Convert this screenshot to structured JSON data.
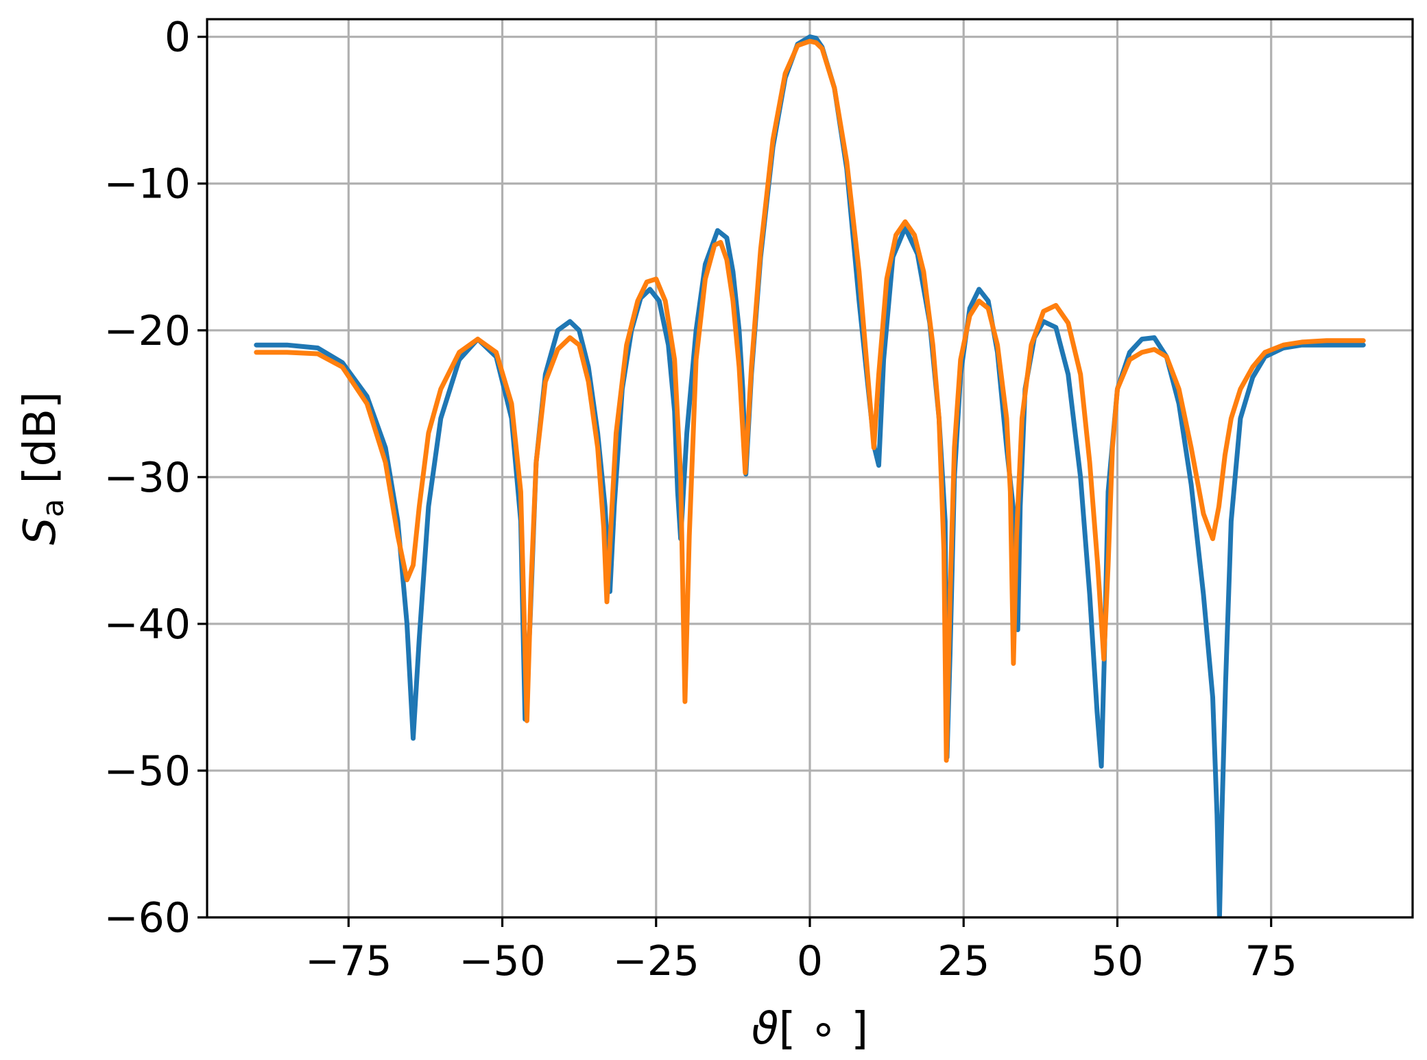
{
  "chart_data": {
    "type": "line",
    "xlabel_symbol": "ϑ",
    "xlabel_unit": "[ ∘ ]",
    "ylabel_symbol": "S",
    "ylabel_subscript": "a",
    "ylabel_unit": "[dB]",
    "xlim": [
      -98,
      98
    ],
    "ylim": [
      -60,
      1.2
    ],
    "xticks": [
      -75,
      -50,
      -25,
      0,
      25,
      50,
      75
    ],
    "xtick_labels": [
      "−75",
      "−50",
      "−25",
      "0",
      "25",
      "50",
      "75"
    ],
    "yticks": [
      0,
      -10,
      -20,
      -30,
      -40,
      -50,
      -60
    ],
    "ytick_labels": [
      "0",
      "−10",
      "−20",
      "−30",
      "−40",
      "−50",
      "−60"
    ],
    "grid": true,
    "series": [
      {
        "color": "#1f77b4",
        "x": [
          -90,
          -85,
          -80,
          -76,
          -72,
          -69,
          -67,
          -65.5,
          -64.5,
          -63.5,
          -62,
          -60,
          -57,
          -54,
          -51,
          -48.5,
          -47,
          -46.3,
          -45.5,
          -44.5,
          -43,
          -41,
          -39,
          -37.5,
          -36,
          -34.5,
          -33.3,
          -32.5,
          -31.8,
          -30.5,
          -29,
          -27.5,
          -26,
          -24.5,
          -23,
          -22,
          -21.5,
          -21,
          -20,
          -18.5,
          -17,
          -15,
          -13.5,
          -12.5,
          -11.5,
          -10.9,
          -10.4,
          -9.5,
          -8,
          -6,
          -4,
          -2,
          0,
          1,
          2,
          4,
          6,
          8,
          9.5,
          10.5,
          11.2,
          12,
          13.5,
          15.5,
          17.5,
          19.5,
          21,
          22,
          22.3,
          22.8,
          23.5,
          24.5,
          26,
          27.5,
          29,
          30.5,
          32,
          33.3,
          33.8,
          34.2,
          35,
          36.5,
          38,
          40,
          42,
          44,
          45.5,
          46.7,
          47.4,
          47.9,
          48.5,
          50,
          52,
          54,
          56,
          58,
          60,
          62,
          64,
          65.5,
          66.2,
          66.6,
          67,
          67.6,
          68.5,
          70,
          72,
          74,
          77,
          80,
          84,
          88,
          90
        ],
        "y": [
          -21,
          -21,
          -21.2,
          -22.2,
          -24.5,
          -28,
          -33,
          -40,
          -47.8,
          -41,
          -32,
          -26,
          -22,
          -20.6,
          -21.8,
          -26,
          -33,
          -46.5,
          -40,
          -29,
          -23,
          -20,
          -19.4,
          -20,
          -22.5,
          -27,
          -32,
          -37.8,
          -32,
          -24,
          -20,
          -17.8,
          -17.2,
          -18,
          -21,
          -25.5,
          -31,
          -34.2,
          -27,
          -20,
          -15.5,
          -13.2,
          -13.7,
          -16,
          -20,
          -24,
          -29.8,
          -23,
          -15,
          -7.5,
          -2.8,
          -0.5,
          0,
          -0.1,
          -0.7,
          -3.5,
          -9,
          -18,
          -24,
          -28,
          -29.2,
          -22,
          -15,
          -13,
          -14.8,
          -19.5,
          -26,
          -33,
          -49.1,
          -42,
          -30,
          -23,
          -18.5,
          -17.2,
          -18,
          -21.5,
          -28,
          -33,
          -40.4,
          -32,
          -24,
          -20.5,
          -19.4,
          -19.8,
          -23,
          -30,
          -38,
          -46,
          -49.7,
          -42,
          -31,
          -24,
          -21.5,
          -20.6,
          -20.5,
          -21.8,
          -25,
          -30.5,
          -38,
          -45,
          -53,
          -60,
          -53,
          -44,
          -33,
          -26,
          -23.2,
          -21.8,
          -21.2,
          -21,
          -21,
          -21,
          -21
        ]
      },
      {
        "color": "#ff7f0e",
        "x": [
          -90,
          -85,
          -80,
          -76,
          -72,
          -69,
          -67,
          -65.5,
          -64.5,
          -63.5,
          -62,
          -60,
          -57,
          -54,
          -51,
          -48.5,
          -47,
          -46,
          -45.3,
          -44.5,
          -43,
          -41,
          -39,
          -37.5,
          -36,
          -34.5,
          -33.5,
          -33,
          -32.3,
          -31.5,
          -29.8,
          -28,
          -26.5,
          -25,
          -23.5,
          -22,
          -21,
          -20.3,
          -19.6,
          -18.5,
          -17,
          -15.5,
          -14.5,
          -13.5,
          -12.5,
          -11.5,
          -10.5,
          -9.5,
          -8,
          -6,
          -4,
          -2,
          0,
          1,
          2,
          4,
          6,
          8,
          9,
          9.8,
          10.4,
          11.2,
          12.5,
          14,
          15.5,
          17,
          18.5,
          20,
          21,
          21.8,
          22.2,
          22.8,
          23.5,
          24.5,
          26,
          27.5,
          29,
          30.5,
          32,
          32.6,
          33.1,
          33.6,
          34.5,
          36,
          38,
          40,
          42,
          44,
          45.5,
          46.8,
          47.8,
          48.5,
          49.2,
          50,
          52,
          54,
          56,
          58,
          60,
          62,
          64,
          65.5,
          66.5,
          67.5,
          68.5,
          70,
          72,
          74,
          77,
          80,
          84,
          88,
          90
        ],
        "y": [
          -21.5,
          -21.5,
          -21.6,
          -22.5,
          -25,
          -29,
          -34,
          -37,
          -36,
          -32,
          -27,
          -24,
          -21.5,
          -20.6,
          -21.5,
          -25,
          -31,
          -46.6,
          -37,
          -29,
          -23.5,
          -21.3,
          -20.5,
          -21,
          -23.5,
          -28,
          -33.5,
          -38.5,
          -33,
          -27,
          -21,
          -18,
          -16.7,
          -16.5,
          -18,
          -22,
          -30,
          -45.3,
          -34,
          -22,
          -16.5,
          -14.2,
          -14,
          -15.2,
          -18,
          -22.5,
          -29.7,
          -22.5,
          -14.5,
          -7,
          -2.5,
          -0.6,
          -0.3,
          -0.4,
          -0.8,
          -3.5,
          -8.5,
          -16,
          -21,
          -25,
          -28,
          -23,
          -16.5,
          -13.5,
          -12.6,
          -13.5,
          -16,
          -21,
          -26,
          -35,
          -49.3,
          -38,
          -28,
          -22,
          -19,
          -18,
          -18.5,
          -21,
          -26,
          -31,
          -42.7,
          -34,
          -26,
          -21,
          -18.7,
          -18.3,
          -19.5,
          -23,
          -29,
          -36,
          -42.4,
          -36,
          -28,
          -24,
          -22,
          -21.5,
          -21.3,
          -21.8,
          -24,
          -28,
          -32.5,
          -34.2,
          -32,
          -28.5,
          -26,
          -24,
          -22.5,
          -21.5,
          -21,
          -20.8,
          -20.7,
          -20.7,
          -20.7
        ]
      }
    ]
  }
}
